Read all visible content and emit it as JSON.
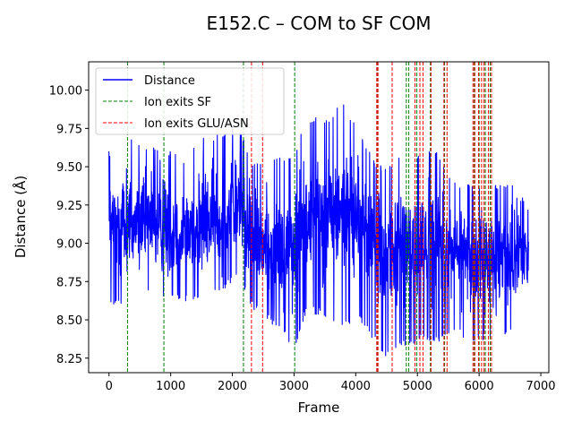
{
  "chart_data": {
    "type": "line",
    "title": "E152.C – COM to SF COM",
    "xlabel": "Frame",
    "ylabel": "Distance (Å)",
    "xlim": [
      -330,
      7130
    ],
    "ylim": [
      8.155,
      10.185
    ],
    "x_ticks": [
      0,
      1000,
      2000,
      3000,
      4000,
      5000,
      6000,
      7000
    ],
    "y_ticks": [
      8.25,
      8.5,
      8.75,
      9.0,
      9.25,
      9.5,
      9.75,
      10.0
    ],
    "x_tick_labels": [
      "0",
      "1000",
      "2000",
      "3000",
      "4000",
      "5000",
      "6000",
      "7000"
    ],
    "y_tick_labels": [
      "8.25",
      "8.50",
      "8.75",
      "9.00",
      "9.25",
      "9.50",
      "9.75",
      "10.00"
    ],
    "grid": false,
    "legend_position": "top-left",
    "series": [
      {
        "name": "Distance",
        "kind": "line",
        "color": "#0000ff",
        "frames": 6800,
        "envelope_x": [
          0,
          300,
          600,
          900,
          1200,
          1500,
          1800,
          2100,
          2300,
          2500,
          2800,
          3000,
          3200,
          3500,
          3800,
          4100,
          4300,
          4500,
          4700,
          4900,
          5100,
          5300,
          5500,
          5700,
          5900,
          6100,
          6300,
          6500,
          6800
        ],
        "envelope_min": [
          8.57,
          8.62,
          8.66,
          8.64,
          8.62,
          8.63,
          8.66,
          8.78,
          8.58,
          8.52,
          8.42,
          8.3,
          8.55,
          8.52,
          8.45,
          8.48,
          8.35,
          8.25,
          8.32,
          8.32,
          8.37,
          8.34,
          8.4,
          8.4,
          8.34,
          8.37,
          8.35,
          8.42,
          8.56
        ],
        "envelope_max": [
          9.6,
          9.72,
          9.64,
          9.63,
          9.55,
          9.69,
          9.73,
          9.79,
          9.55,
          9.55,
          9.58,
          9.58,
          9.84,
          9.8,
          9.93,
          9.69,
          9.55,
          9.49,
          9.58,
          9.55,
          9.61,
          9.6,
          9.48,
          9.4,
          9.38,
          9.38,
          9.38,
          9.4,
          9.25
        ],
        "center": [
          9.1,
          9.15,
          9.12,
          9.1,
          9.08,
          9.1,
          9.15,
          9.25,
          9.05,
          8.95,
          8.95,
          9.0,
          9.2,
          9.18,
          9.22,
          9.15,
          9.0,
          8.9,
          8.98,
          8.95,
          9.0,
          9.0,
          8.92,
          8.95,
          8.92,
          8.9,
          8.9,
          8.92,
          8.95
        ]
      },
      {
        "name": "Ion exits SF",
        "kind": "vline",
        "color": "#008000",
        "x": [
          300,
          890,
          2180,
          3010,
          4350,
          4820,
          4860,
          4990,
          5210,
          5440,
          5920,
          6000,
          6100,
          6180
        ]
      },
      {
        "name": "Ion exits GLU/ASN",
        "kind": "vline",
        "color": "#ff0000",
        "x": [
          2310,
          2490,
          4340,
          4360,
          4590,
          4960,
          5040,
          5090,
          5220,
          5430,
          5480,
          5900,
          5930,
          5990,
          6040,
          6080,
          6150,
          6200
        ]
      }
    ]
  }
}
